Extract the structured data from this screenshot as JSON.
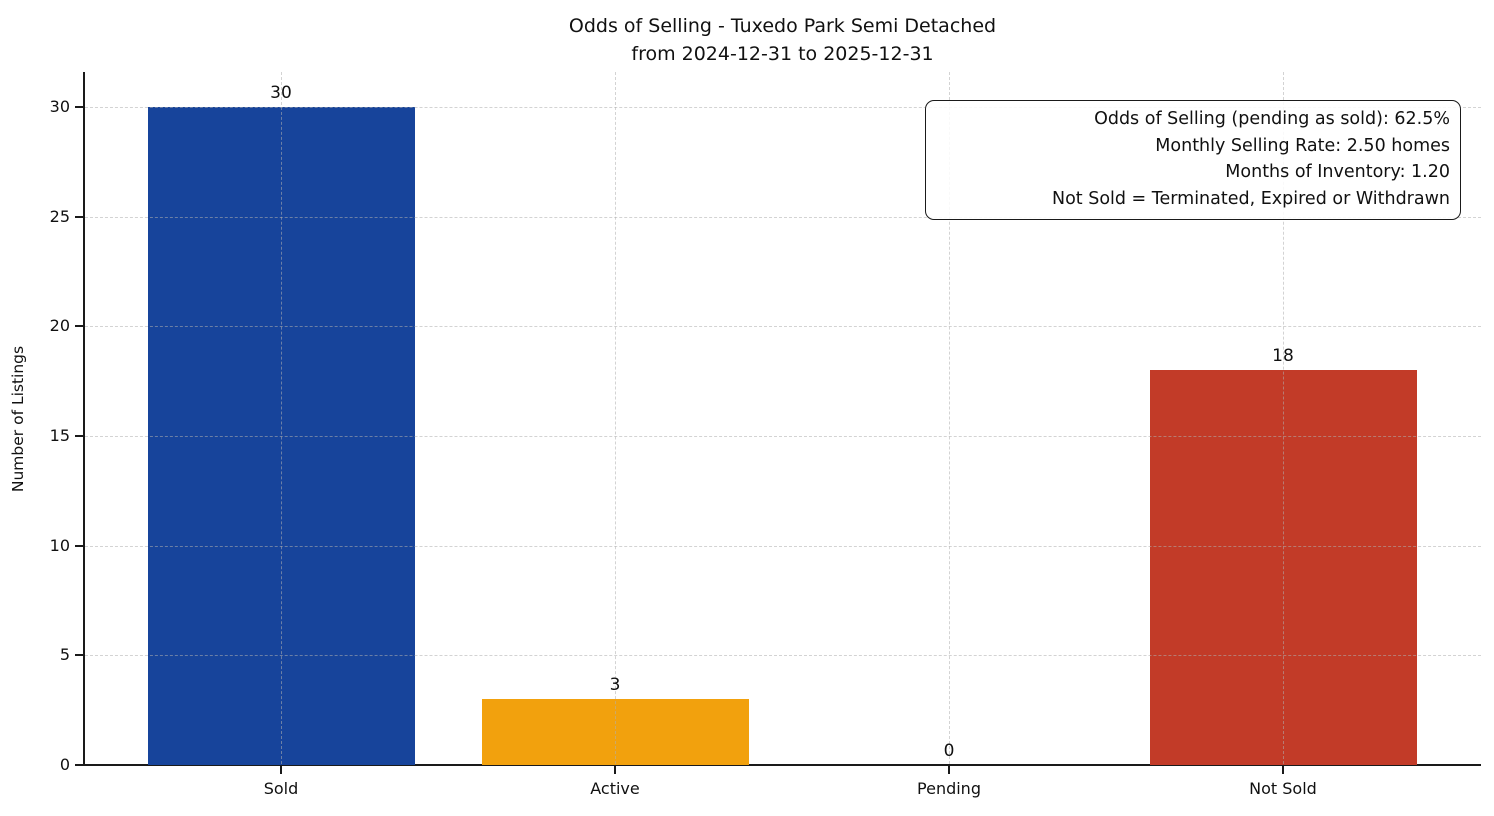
{
  "chart_data": {
    "type": "bar",
    "title_lines": [
      "Odds of Selling - Tuxedo Park Semi Detached",
      "from 2024-12-31 to 2025-12-31"
    ],
    "ylabel": "Number of Listings",
    "categories": [
      "Sold",
      "Active",
      "Pending",
      "Not Sold"
    ],
    "values": [
      30,
      3,
      0,
      18
    ],
    "bar_colors": [
      "#17449b",
      "#f2a10d",
      "#7f7f7f",
      "#c23b28"
    ],
    "value_labels": [
      "30",
      "3",
      "0",
      "18"
    ],
    "yticks": [
      0,
      5,
      10,
      15,
      20,
      25,
      30
    ],
    "ytick_labels": [
      "0",
      "5",
      "10",
      "15",
      "20",
      "25",
      "30"
    ],
    "ylim": [
      0,
      31.5
    ],
    "grid": {
      "style": "dashed",
      "color": "#b0b0b0",
      "axes": "both",
      "over_bars": true
    },
    "legend_position": "none",
    "annotation": {
      "lines": [
        "Odds of Selling (pending as sold): 62.5%",
        "Monthly Selling Rate: 2.50 homes",
        "Months of Inventory: 1.20",
        "Not Sold = Terminated, Expired or Withdrawn"
      ]
    }
  }
}
